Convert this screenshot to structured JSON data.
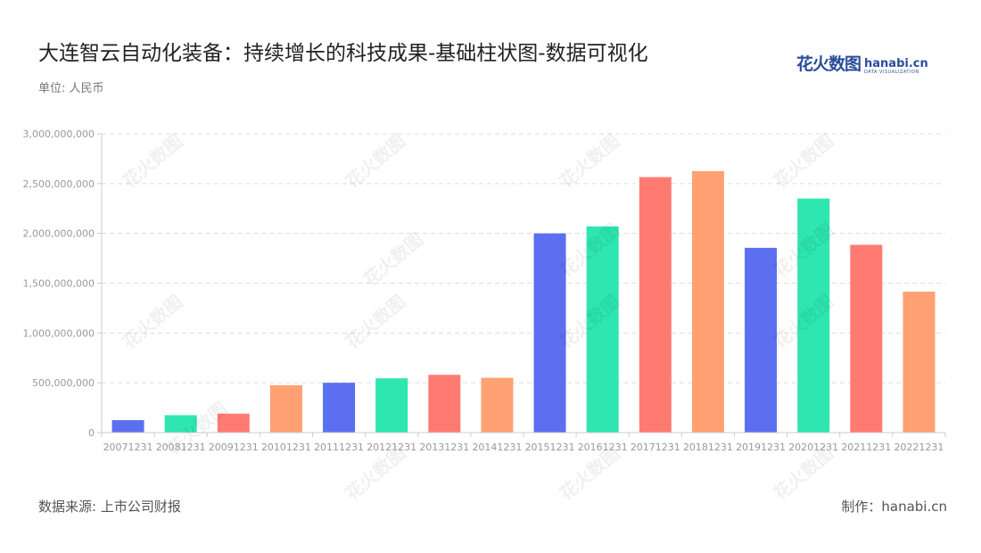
{
  "header": {
    "title": "大连智云自动化装备：持续增长的科技成果-基础柱状图-数据可视化",
    "unit": "单位: 人民币"
  },
  "logo": {
    "cn": "花火数图",
    "en": "hanabi.cn",
    "sub": "DATA VISUALIZATION"
  },
  "footer": {
    "source": "数据来源: 上市公司财报",
    "credit": "制作：hanabi.cn"
  },
  "watermark_text": "花火数图",
  "colors": {
    "palette": [
      "#5b6ff0",
      "#2de6b0",
      "#ff7b72",
      "#ffa173"
    ],
    "grid": "#dddddd",
    "axis": "#cccccc",
    "tick": "#999999"
  },
  "chart_data": {
    "type": "bar",
    "title": "",
    "xlabel": "",
    "ylabel": "",
    "categories": [
      "20071231",
      "20081231",
      "20091231",
      "20101231",
      "20111231",
      "20121231",
      "20131231",
      "20141231",
      "20151231",
      "20161231",
      "20171231",
      "20181231",
      "20191231",
      "20201231",
      "20211231",
      "20221231"
    ],
    "values": [
      125000000,
      175000000,
      190000000,
      475000000,
      500000000,
      545000000,
      580000000,
      550000000,
      2000000000,
      2070000000,
      2565000000,
      2625000000,
      1855000000,
      2350000000,
      1885000000,
      1415000000
    ],
    "ylim": [
      0,
      3000000000
    ],
    "yticks": [
      0,
      500000000,
      1000000000,
      1500000000,
      2000000000,
      2500000000,
      3000000000
    ],
    "ytick_labels": [
      "0",
      "500,000,000",
      "1,000,000,000",
      "1,500,000,000",
      "2,000,000,000",
      "2,500,000,000",
      "3,000,000,000"
    ],
    "grid": true,
    "legend": "none"
  }
}
